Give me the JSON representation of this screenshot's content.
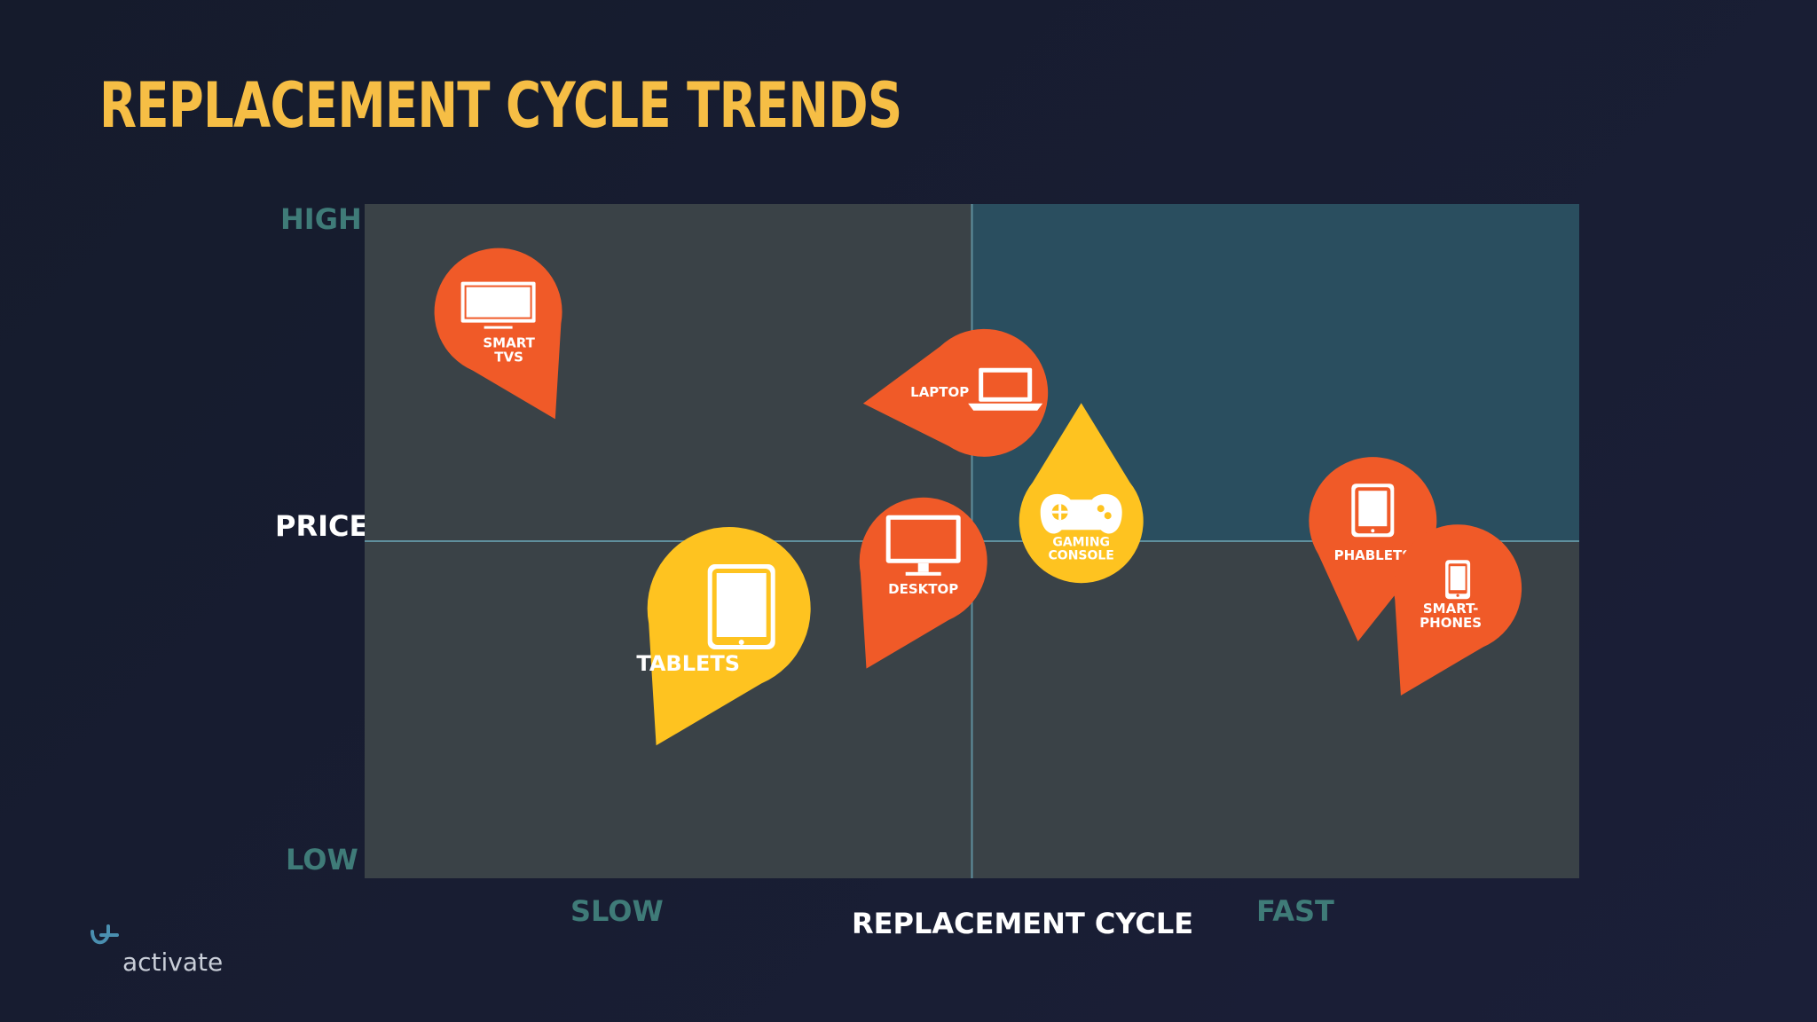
{
  "title": "REPLACEMENT CYCLE TRENDS",
  "logo": {
    "text": "activate"
  },
  "chart_data": {
    "type": "scatter",
    "xlabel": "REPLACEMENT CYCLE",
    "ylabel": "PRICE",
    "x_low_label": "SLOW",
    "x_high_label": "FAST",
    "y_low_label": "LOW",
    "y_high_label": "HIGH",
    "xlim": [
      0,
      1
    ],
    "ylim": [
      0,
      1
    ],
    "quadrant_colors": {
      "default": "#3a4247",
      "highlight": "#2a4e5f"
    },
    "highlight_quadrant": "top-right",
    "divider_color": "#5f8f9d",
    "grid": false,
    "points": [
      {
        "label": [
          "SMART",
          "TVS"
        ],
        "icon": "tv-icon",
        "x": 0.11,
        "y": 0.84,
        "color": "#f05a28",
        "size": "medium",
        "tip": "bottom-right"
      },
      {
        "label": [
          "LAPTOP"
        ],
        "icon": "laptop-icon",
        "x": 0.51,
        "y": 0.72,
        "color": "#f05a28",
        "size": "medium",
        "tip": "left"
      },
      {
        "label": [
          "DESKTOP"
        ],
        "icon": "desktop-icon",
        "x": 0.46,
        "y": 0.47,
        "color": "#f05a28",
        "size": "medium",
        "tip": "bottom-left"
      },
      {
        "label": [
          "TABLETS"
        ],
        "icon": "tablet-icon",
        "x": 0.3,
        "y": 0.4,
        "color": "#fec320",
        "size": "large",
        "tip": "bottom-left"
      },
      {
        "label": [
          "GAMING",
          "CONSOLE"
        ],
        "icon": "gamepad-icon",
        "x": 0.59,
        "y": 0.53,
        "color": "#fec320",
        "size": "medium",
        "tip": "top"
      },
      {
        "label": [
          "PHABLETS"
        ],
        "icon": "phablet-icon",
        "x": 0.83,
        "y": 0.53,
        "color": "#f05a28",
        "size": "medium",
        "tip": "bottom"
      },
      {
        "label": [
          "SMART-",
          "PHONES"
        ],
        "icon": "smartphone-icon",
        "x": 0.9,
        "y": 0.43,
        "color": "#f05a28",
        "size": "medium",
        "tip": "bottom-left"
      }
    ]
  }
}
